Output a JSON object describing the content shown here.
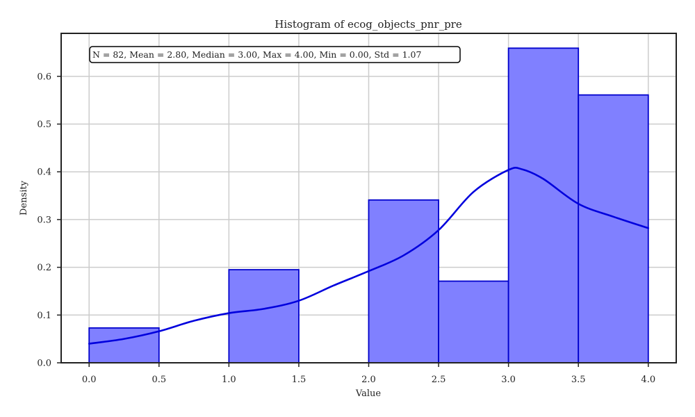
{
  "chart_data": {
    "type": "histogram",
    "title": "Histogram of ecog_objects_pnr_pre",
    "xlabel": "Value",
    "ylabel": "Density",
    "xlim": [
      -0.2,
      4.2
    ],
    "ylim": [
      0.0,
      0.69
    ],
    "x_ticks": [
      "0.0",
      "0.5",
      "1.0",
      "1.5",
      "2.0",
      "2.5",
      "3.0",
      "3.5",
      "4.0"
    ],
    "y_ticks": [
      "0.0",
      "0.1",
      "0.2",
      "0.3",
      "0.4",
      "0.5",
      "0.6"
    ],
    "grid": true,
    "bins": [
      {
        "x0": 0.0,
        "x1": 0.5,
        "density": 0.073
      },
      {
        "x0": 0.5,
        "x1": 1.0,
        "density": 0.0
      },
      {
        "x0": 1.0,
        "x1": 1.5,
        "density": 0.195
      },
      {
        "x0": 1.5,
        "x1": 2.0,
        "density": 0.0
      },
      {
        "x0": 2.0,
        "x1": 2.5,
        "density": 0.341
      },
      {
        "x0": 2.5,
        "x1": 3.0,
        "density": 0.171
      },
      {
        "x0": 3.0,
        "x1": 3.5,
        "density": 0.659
      },
      {
        "x0": 3.5,
        "x1": 4.0,
        "density": 0.561
      }
    ],
    "kde": {
      "x": [
        0.0,
        0.25,
        0.5,
        0.75,
        1.0,
        1.25,
        1.5,
        1.75,
        2.0,
        2.25,
        2.5,
        2.75,
        3.0,
        3.1,
        3.25,
        3.5,
        3.75,
        4.0
      ],
      "y": [
        0.04,
        0.05,
        0.066,
        0.088,
        0.104,
        0.113,
        0.13,
        0.162,
        0.192,
        0.225,
        0.278,
        0.358,
        0.404,
        0.405,
        0.385,
        0.333,
        0.306,
        0.282
      ]
    },
    "annotation": "N = 82, Mean = 2.80, Median = 3.00, Max = 4.00, Min = 0.00, Std = 1.07",
    "colors": {
      "bar_fill": "#8080ff",
      "bar_edge": "#0000cc",
      "kde_line": "#0000dd",
      "grid": "#cccccc",
      "axis": "#222222"
    }
  }
}
